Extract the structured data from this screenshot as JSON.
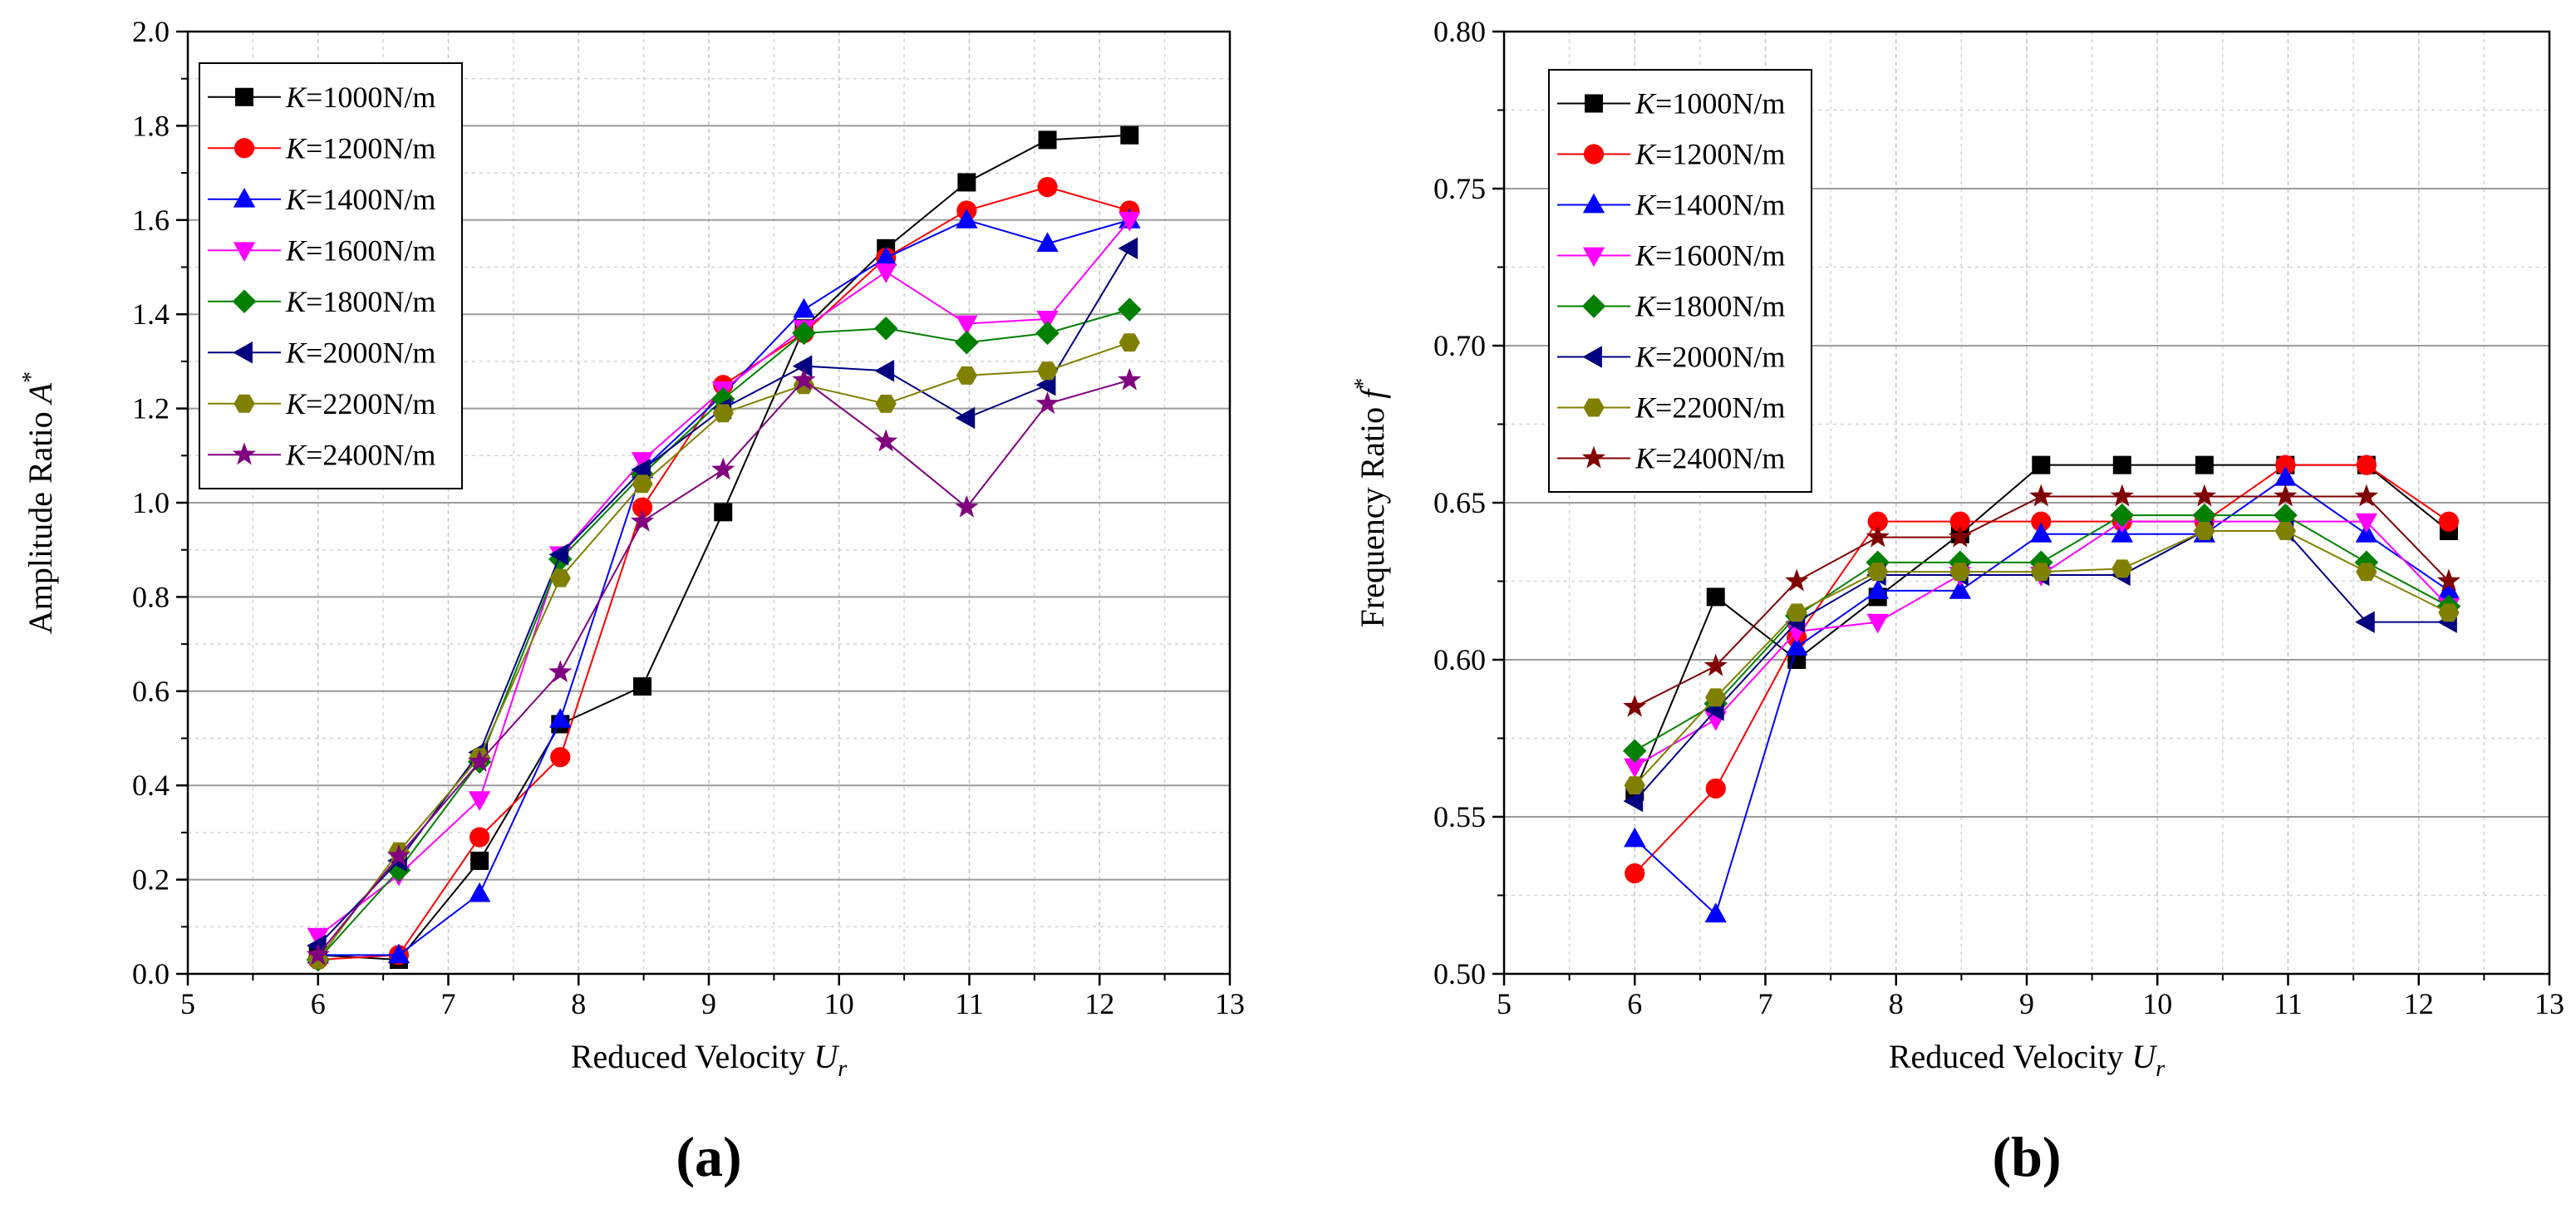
{
  "figure": {
    "panels": [
      "(a)",
      "(b)"
    ]
  },
  "chart_data": [
    {
      "type": "line",
      "panel_label": "(a)",
      "xlabel": "Reduced Velocity",
      "xlabel_symbol": "U",
      "xlabel_sub": "r",
      "ylabel": "Amplitude Ratio",
      "ylabel_symbol": "A",
      "ylabel_sup": "*",
      "xlim": [
        5,
        13
      ],
      "ylim": [
        0,
        2.0
      ],
      "xticks": [
        5,
        6,
        7,
        8,
        9,
        10,
        11,
        12,
        13
      ],
      "xtick_labels": [
        "5",
        "6",
        "7",
        "8",
        "9",
        "10",
        "11",
        "12",
        "13"
      ],
      "yticks": [
        0,
        0.2,
        0.4,
        0.6,
        0.8,
        1.0,
        1.2,
        1.4,
        1.6,
        1.8,
        2.0
      ],
      "ytick_labels": [
        "0.0",
        "0.2",
        "0.4",
        "0.6",
        "0.8",
        "1.0",
        "1.2",
        "1.4",
        "1.6",
        "1.8",
        "2.0"
      ],
      "grid": true,
      "legend_position": "top-left",
      "x": [
        6.0,
        6.62,
        7.24,
        7.86,
        8.49,
        9.11,
        9.73,
        10.36,
        10.98,
        11.6,
        12.23
      ],
      "series": [
        {
          "name": "K=1000N/m",
          "prefix": "K",
          "suffix": "=1000N/m",
          "color": "#000000",
          "marker": "square",
          "values": [
            0.04,
            0.03,
            0.24,
            0.53,
            0.61,
            0.98,
            1.37,
            1.54,
            1.68,
            1.77,
            1.78
          ]
        },
        {
          "name": "K=1200N/m",
          "prefix": "K",
          "suffix": "=1200N/m",
          "color": "#ff0000",
          "marker": "circle",
          "values": [
            0.03,
            0.04,
            0.29,
            0.46,
            0.99,
            1.25,
            1.36,
            1.52,
            1.62,
            1.67,
            1.62
          ]
        },
        {
          "name": "K=1400N/m",
          "prefix": "K",
          "suffix": "=1400N/m",
          "color": "#0000ff",
          "marker": "triangle-up",
          "values": [
            0.04,
            0.04,
            0.17,
            0.54,
            1.07,
            1.23,
            1.41,
            1.52,
            1.6,
            1.55,
            1.6
          ]
        },
        {
          "name": "K=1600N/m",
          "prefix": "K",
          "suffix": "=1600N/m",
          "color": "#ff00ff",
          "marker": "triangle-down",
          "values": [
            0.08,
            0.21,
            0.37,
            0.89,
            1.09,
            1.24,
            1.37,
            1.49,
            1.38,
            1.39,
            1.6
          ]
        },
        {
          "name": "K=1800N/m",
          "prefix": "K",
          "suffix": "=1800N/m",
          "color": "#008000",
          "marker": "diamond",
          "values": [
            0.03,
            0.22,
            0.45,
            0.88,
            1.06,
            1.22,
            1.36,
            1.37,
            1.34,
            1.36,
            1.41
          ]
        },
        {
          "name": "K=2000N/m",
          "prefix": "K",
          "suffix": "=2000N/m",
          "color": "#000080",
          "marker": "triangle-left",
          "values": [
            0.06,
            0.24,
            0.47,
            0.89,
            1.07,
            1.2,
            1.29,
            1.28,
            1.18,
            1.25,
            1.54
          ]
        },
        {
          "name": "K=2200N/m",
          "prefix": "K",
          "suffix": "=2200N/m",
          "color": "#808000",
          "marker": "hexagon",
          "values": [
            0.03,
            0.26,
            0.46,
            0.84,
            1.04,
            1.19,
            1.25,
            1.21,
            1.27,
            1.28,
            1.34
          ]
        },
        {
          "name": "K=2400N/m",
          "prefix": "K",
          "suffix": "=2400N/m",
          "color": "#800080",
          "marker": "star",
          "values": [
            0.04,
            0.25,
            0.45,
            0.64,
            0.96,
            1.07,
            1.26,
            1.13,
            0.99,
            1.21,
            1.26
          ]
        }
      ]
    },
    {
      "type": "line",
      "panel_label": "(b)",
      "xlabel": "Reduced Velocity",
      "xlabel_symbol": "U",
      "xlabel_sub": "r",
      "ylabel": "Frequency Ratio",
      "ylabel_symbol": "f",
      "ylabel_sup": "*",
      "xlim": [
        5,
        13
      ],
      "ylim": [
        0.5,
        0.8
      ],
      "xticks": [
        5,
        6,
        7,
        8,
        9,
        10,
        11,
        12,
        13
      ],
      "xtick_labels": [
        "5",
        "6",
        "7",
        "8",
        "9",
        "10",
        "11",
        "12",
        "13"
      ],
      "yticks": [
        0.5,
        0.55,
        0.6,
        0.65,
        0.7,
        0.75,
        0.8
      ],
      "ytick_labels": [
        "0.50",
        "0.55",
        "0.60",
        "0.65",
        "0.70",
        "0.75",
        "0.80"
      ],
      "grid": true,
      "legend_position": "top-left",
      "x": [
        6.0,
        6.62,
        7.24,
        7.86,
        8.49,
        9.11,
        9.73,
        10.36,
        10.98,
        11.6,
        12.23
      ],
      "series": [
        {
          "name": "K=1000N/m",
          "prefix": "K",
          "suffix": "=1000N/m",
          "color": "#000000",
          "marker": "square",
          "values": [
            0.558,
            0.62,
            0.6,
            0.62,
            0.64,
            0.662,
            0.662,
            0.662,
            0.662,
            0.662,
            0.641
          ]
        },
        {
          "name": "K=1200N/m",
          "prefix": "K",
          "suffix": "=1200N/m",
          "color": "#ff0000",
          "marker": "circle",
          "values": [
            0.532,
            0.559,
            0.607,
            0.644,
            0.644,
            0.644,
            0.644,
            0.644,
            0.662,
            0.662,
            0.644
          ]
        },
        {
          "name": "K=1400N/m",
          "prefix": "K",
          "suffix": "=1400N/m",
          "color": "#0000ff",
          "marker": "triangle-up",
          "values": [
            0.543,
            0.519,
            0.604,
            0.622,
            0.622,
            0.64,
            0.64,
            0.64,
            0.658,
            0.64,
            0.622
          ]
        },
        {
          "name": "K=1600N/m",
          "prefix": "K",
          "suffix": "=1600N/m",
          "color": "#ff00ff",
          "marker": "triangle-down",
          "values": [
            0.566,
            0.581,
            0.609,
            0.612,
            0.627,
            0.627,
            0.644,
            0.644,
            0.644,
            0.644,
            0.617
          ]
        },
        {
          "name": "K=1800N/m",
          "prefix": "K",
          "suffix": "=1800N/m",
          "color": "#008000",
          "marker": "diamond",
          "values": [
            0.571,
            0.586,
            0.614,
            0.631,
            0.631,
            0.631,
            0.646,
            0.646,
            0.646,
            0.631,
            0.617
          ]
        },
        {
          "name": "K=2000N/m",
          "prefix": "K",
          "suffix": "=2000N/m",
          "color": "#000080",
          "marker": "triangle-left",
          "values": [
            0.555,
            0.584,
            0.612,
            0.627,
            0.627,
            0.627,
            0.627,
            0.641,
            0.641,
            0.612,
            0.612
          ]
        },
        {
          "name": "K=2200N/m",
          "prefix": "K",
          "suffix": "=2200N/m",
          "color": "#808000",
          "marker": "hexagon",
          "values": [
            0.56,
            0.588,
            0.615,
            0.628,
            0.628,
            0.628,
            0.629,
            0.641,
            0.641,
            0.628,
            0.615
          ]
        },
        {
          "name": "K=2400N/m",
          "prefix": "K",
          "suffix": "=2400N/m",
          "color": "#800000",
          "marker": "star",
          "values": [
            0.585,
            0.598,
            0.625,
            0.639,
            0.639,
            0.652,
            0.652,
            0.652,
            0.652,
            0.652,
            0.625
          ]
        }
      ]
    }
  ]
}
